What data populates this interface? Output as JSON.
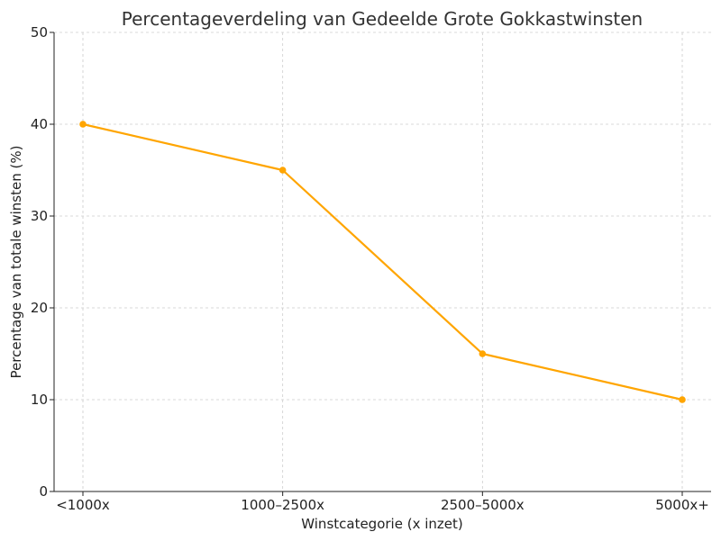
{
  "chart_data": {
    "type": "line",
    "title": "Percentageverdeling van Gedeelde Grote Gokkastwinsten",
    "xlabel": "Winstcategorie (x inzet)",
    "ylabel": "Percentage van totale winsten (%)",
    "categories": [
      "<1000x",
      "1000–2500x",
      "2500–5000x",
      "5000x+"
    ],
    "series": [
      {
        "values": [
          40,
          35,
          15,
          10
        ],
        "color": "#FFA500"
      }
    ],
    "ylim": [
      0,
      50
    ],
    "yticks": [
      0,
      10,
      20,
      30,
      40,
      50
    ],
    "grid": true,
    "marker": "circle"
  }
}
